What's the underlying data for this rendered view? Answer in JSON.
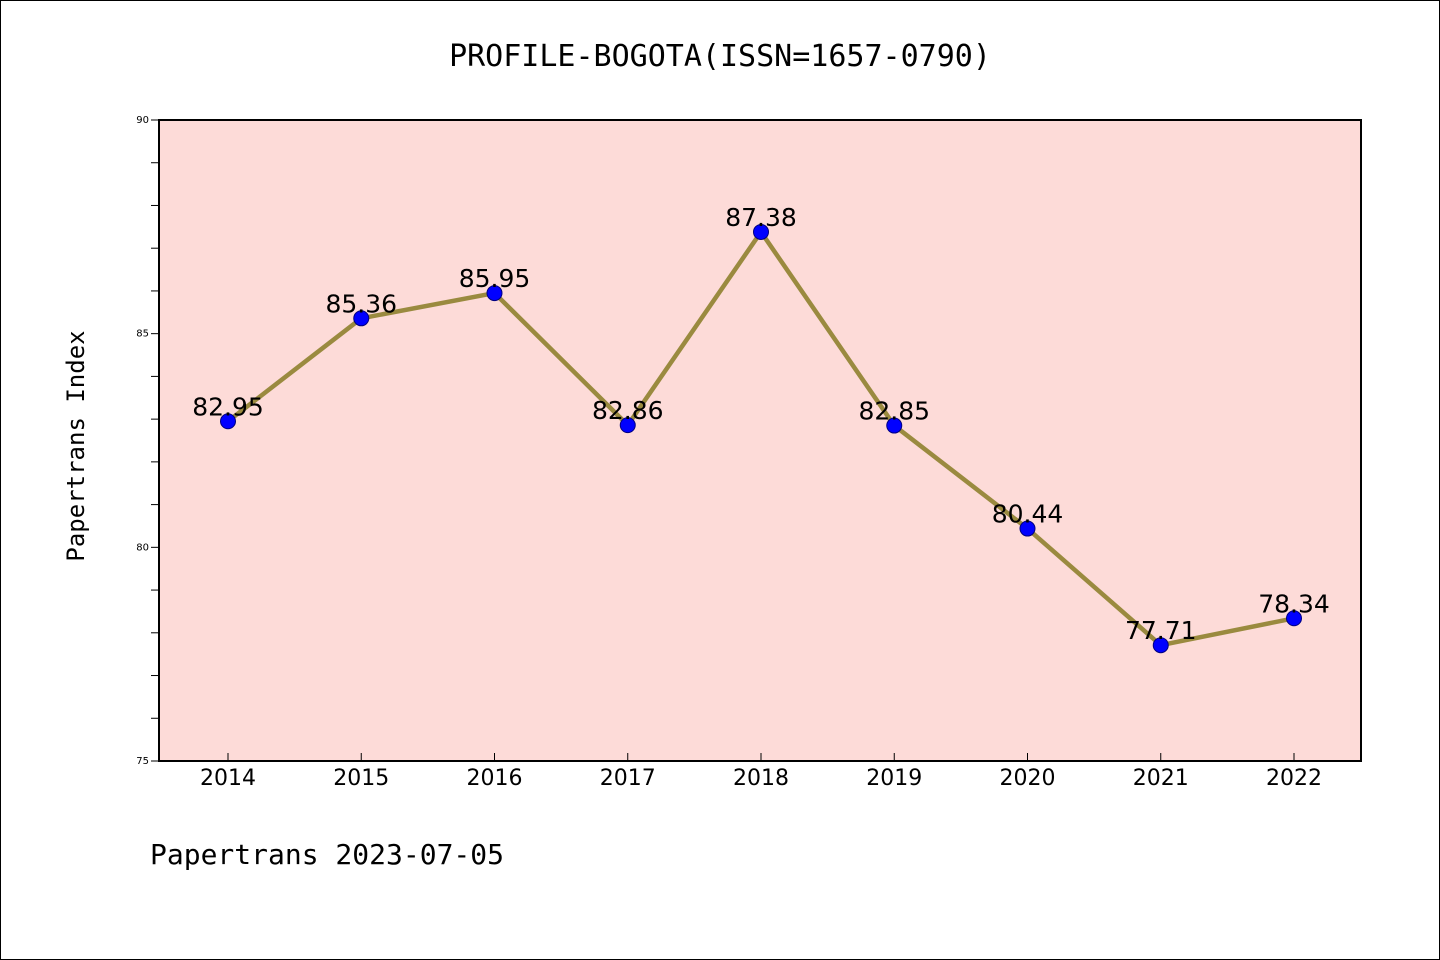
{
  "chart_data": {
    "type": "line",
    "title": "PROFILE-BOGOTA(ISSN=1657-0790)",
    "xlabel": "",
    "ylabel": "Papertrans Index",
    "footer": "Papertrans 2023-07-05",
    "categories": [
      "2014",
      "2015",
      "2016",
      "2017",
      "2018",
      "2019",
      "2020",
      "2021",
      "2022"
    ],
    "series": [
      {
        "values": [
          82.95,
          85.36,
          85.95,
          82.86,
          87.38,
          82.85,
          80.44,
          77.71,
          78.34
        ],
        "data_labels": [
          "82.95",
          "85.36",
          "85.95",
          "82.86",
          "87.38",
          "82.85",
          "80.44",
          "77.71",
          "78.34"
        ]
      }
    ],
    "ylim": [
      75,
      90
    ],
    "yticks": [
      "75",
      "80",
      "85",
      "90"
    ],
    "grid": false,
    "colors": {
      "plot_background": "#fddbd8",
      "line": "#9a8a3f",
      "marker": "#0000ff",
      "axis": "#000000"
    }
  }
}
